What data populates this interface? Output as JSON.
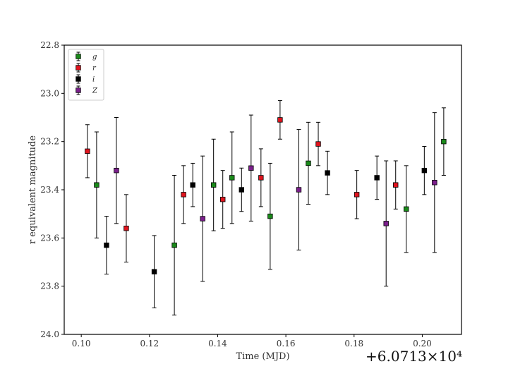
{
  "chart_data": {
    "type": "scatter",
    "xlabel": "Time (MJD)",
    "ylabel": "r equivalent magnitude",
    "x_offset_label": "+6.0713×10⁴",
    "xlim": [
      0.095,
      0.2115
    ],
    "ylim": [
      24.0,
      22.8
    ],
    "y_inverted": true,
    "x_ticks": [
      "0.10",
      "0.12",
      "0.14",
      "0.16",
      "0.18",
      "0.20"
    ],
    "x_tick_values": [
      0.1,
      0.12,
      0.14,
      0.16,
      0.18,
      0.2
    ],
    "y_ticks": [
      "22.8",
      "23.0",
      "23.2",
      "23.4",
      "23.6",
      "23.8",
      "24.0"
    ],
    "y_tick_values": [
      22.8,
      23.0,
      23.2,
      23.4,
      23.6,
      23.8,
      24.0
    ],
    "legend_position": "top-left",
    "series": [
      {
        "name": "g",
        "color": "#1a8a1a",
        "points": [
          {
            "x": 0.1045,
            "y": 23.38,
            "err": 0.22
          },
          {
            "x": 0.1273,
            "y": 23.63,
            "err": 0.29
          },
          {
            "x": 0.1388,
            "y": 23.38,
            "err": 0.19
          },
          {
            "x": 0.1442,
            "y": 23.35,
            "err": 0.19
          },
          {
            "x": 0.1554,
            "y": 23.51,
            "err": 0.22
          },
          {
            "x": 0.1666,
            "y": 23.29,
            "err": 0.17
          },
          {
            "x": 0.1953,
            "y": 23.48,
            "err": 0.18
          },
          {
            "x": 0.2063,
            "y": 23.2,
            "err": 0.14
          }
        ]
      },
      {
        "name": "r",
        "color": "#e0141e",
        "points": [
          {
            "x": 0.1018,
            "y": 23.24,
            "err": 0.11
          },
          {
            "x": 0.1132,
            "y": 23.56,
            "err": 0.14
          },
          {
            "x": 0.13,
            "y": 23.42,
            "err": 0.12
          },
          {
            "x": 0.1415,
            "y": 23.44,
            "err": 0.12
          },
          {
            "x": 0.1527,
            "y": 23.35,
            "err": 0.12
          },
          {
            "x": 0.1583,
            "y": 23.11,
            "err": 0.08
          },
          {
            "x": 0.1695,
            "y": 23.21,
            "err": 0.09
          },
          {
            "x": 0.1808,
            "y": 23.42,
            "err": 0.1
          },
          {
            "x": 0.1922,
            "y": 23.38,
            "err": 0.1
          }
        ]
      },
      {
        "name": "i",
        "color": "#000000",
        "points": [
          {
            "x": 0.1074,
            "y": 23.63,
            "err": 0.12
          },
          {
            "x": 0.1214,
            "y": 23.74,
            "err": 0.15
          },
          {
            "x": 0.1327,
            "y": 23.38,
            "err": 0.09
          },
          {
            "x": 0.147,
            "y": 23.4,
            "err": 0.09
          },
          {
            "x": 0.1722,
            "y": 23.33,
            "err": 0.09
          },
          {
            "x": 0.1867,
            "y": 23.35,
            "err": 0.09
          },
          {
            "x": 0.2006,
            "y": 23.32,
            "err": 0.1
          }
        ]
      },
      {
        "name": "Z",
        "color": "#7b1f8c",
        "points": [
          {
            "x": 0.1103,
            "y": 23.32,
            "err": 0.22
          },
          {
            "x": 0.1356,
            "y": 23.52,
            "err": 0.26
          },
          {
            "x": 0.1498,
            "y": 23.31,
            "err": 0.22
          },
          {
            "x": 0.1638,
            "y": 23.4,
            "err": 0.25
          },
          {
            "x": 0.1894,
            "y": 23.54,
            "err": 0.26
          },
          {
            "x": 0.2036,
            "y": 23.37,
            "err": 0.29
          }
        ]
      }
    ]
  }
}
